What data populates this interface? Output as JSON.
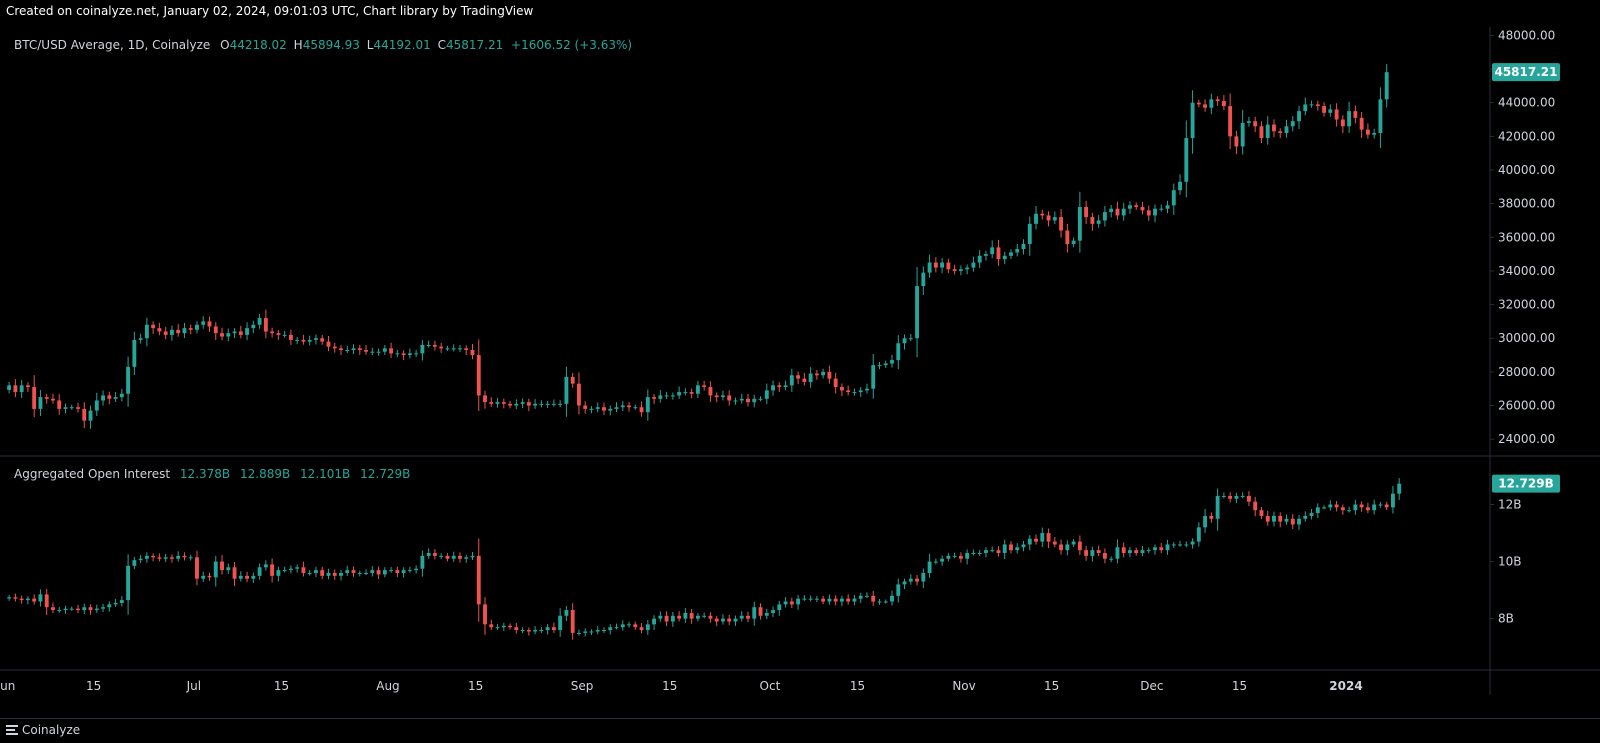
{
  "header": {
    "text": "Created on coinalyze.net, January 02, 2024, 09:01:03 UTC, Chart library by TradingView"
  },
  "footer": {
    "brand": "Coinalyze"
  },
  "colors": {
    "up": "#26a69a",
    "down": "#ef5350",
    "text": "#d1d4dc",
    "grid": "#2a2e39"
  },
  "legend_price": {
    "title": "BTC/USD Average, 1D, Coinalyze",
    "o_key": "O",
    "o": "44218.02",
    "h_key": "H",
    "h": "45894.93",
    "l_key": "L",
    "l": "44192.01",
    "c_key": "C",
    "c": "45817.21",
    "change": "+1606.52 (+3.63%)"
  },
  "legend_oi": {
    "title": "Aggregated Open Interest",
    "o": "12.378B",
    "h": "12.889B",
    "l": "12.101B",
    "c": "12.729B"
  },
  "chart_data": [
    {
      "type": "candlestick",
      "title": "BTC/USD Average, 1D, Coinalyze",
      "ylim": [
        23000,
        48500
      ],
      "y_ticks": [
        "48000.00",
        "46000.00",
        "44000.00",
        "42000.00",
        "40000.00",
        "38000.00",
        "36000.00",
        "34000.00",
        "32000.00",
        "30000.00",
        "28000.00",
        "26000.00",
        "24000.00"
      ],
      "last_value_label": "45817.21",
      "x_range": [
        "2023-06-01",
        "2024-01-24"
      ],
      "x_ticks": [
        {
          "date": "2023-06-01",
          "label": "Jun"
        },
        {
          "date": "2023-06-15",
          "label": "15"
        },
        {
          "date": "2023-07-01",
          "label": "Jul"
        },
        {
          "date": "2023-07-15",
          "label": "15"
        },
        {
          "date": "2023-08-01",
          "label": "Aug"
        },
        {
          "date": "2023-08-15",
          "label": "15"
        },
        {
          "date": "2023-09-01",
          "label": "Sep"
        },
        {
          "date": "2023-09-15",
          "label": "15"
        },
        {
          "date": "2023-10-01",
          "label": "Oct"
        },
        {
          "date": "2023-10-15",
          "label": "15"
        },
        {
          "date": "2023-11-01",
          "label": "Nov"
        },
        {
          "date": "2023-11-15",
          "label": "15"
        },
        {
          "date": "2023-12-01",
          "label": "Dec"
        },
        {
          "date": "2023-12-15",
          "label": "15"
        },
        {
          "date": "2024-01-01",
          "label": "2024"
        }
      ],
      "start_date": "2023-06-01",
      "close": [
        27200,
        26800,
        27200,
        27100,
        25800,
        26500,
        26400,
        26300,
        25800,
        25900,
        25900,
        25800,
        25100,
        25700,
        26300,
        26600,
        26400,
        26500,
        26700,
        28300,
        29900,
        30000,
        30800,
        30600,
        30400,
        30200,
        30500,
        30300,
        30600,
        30500,
        30800,
        31000,
        30700,
        30300,
        30100,
        30300,
        30400,
        30200,
        30600,
        30800,
        31200,
        30400,
        30300,
        30200,
        30200,
        29900,
        29900,
        29800,
        29900,
        30000,
        29800,
        29500,
        29400,
        29300,
        29300,
        29400,
        29300,
        29200,
        29200,
        29200,
        29400,
        29100,
        29100,
        29000,
        29100,
        29100,
        29600,
        29600,
        29500,
        29400,
        29400,
        29400,
        29400,
        29300,
        29000,
        26600,
        26200,
        26100,
        26200,
        26100,
        26000,
        26100,
        26200,
        26000,
        26100,
        26100,
        26100,
        26100,
        26100,
        27700,
        27300,
        26000,
        25800,
        25800,
        25900,
        25700,
        25800,
        25900,
        26000,
        25900,
        25900,
        25600,
        26500,
        26400,
        26600,
        26600,
        26600,
        26800,
        26800,
        26700,
        27200,
        27100,
        26600,
        26500,
        26600,
        26300,
        26300,
        26400,
        26200,
        26400,
        26400,
        26900,
        27200,
        27100,
        27200,
        27800,
        27600,
        27400,
        27900,
        27800,
        28000,
        27600,
        27100,
        26900,
        26800,
        26800,
        26900,
        27000,
        28400,
        28400,
        28500,
        28700,
        29700,
        30000,
        30000,
        33100,
        33900,
        34500,
        34200,
        34500,
        34100,
        34000,
        34100,
        34200,
        34500,
        34900,
        35000,
        35400,
        34700,
        34900,
        35100,
        35300,
        35600,
        36800,
        37400,
        37300,
        37000,
        37200,
        36400,
        35600,
        35800,
        37800,
        37200,
        36800,
        37000,
        37500,
        37700,
        37300,
        37700,
        37900,
        37800,
        37600,
        37300,
        37700,
        37700,
        37900,
        38800,
        39300,
        41900,
        44000,
        43900,
        43700,
        44200,
        44100,
        43800,
        42000,
        41400,
        42800,
        42900,
        42600,
        41900,
        42700,
        42300,
        42200,
        42600,
        42900,
        43500,
        43900,
        43900,
        43800,
        43400,
        43600,
        43000,
        42600,
        43500,
        43100,
        42400,
        42100,
        42200,
        44200,
        45817
      ]
    },
    {
      "type": "candlestick",
      "title": "Aggregated Open Interest",
      "ylim": [
        6.2,
        13.7
      ],
      "y_ticks": [
        "12B",
        "10B",
        "8B"
      ],
      "last_value_label": "12.729B",
      "close": [
        8.75,
        8.7,
        8.65,
        8.7,
        8.6,
        8.85,
        8.4,
        8.3,
        8.3,
        8.35,
        8.35,
        8.3,
        8.4,
        8.3,
        8.35,
        8.4,
        8.5,
        8.55,
        8.65,
        9.85,
        10.05,
        10.1,
        10.2,
        10.15,
        10.1,
        10.15,
        10.1,
        10.2,
        10.15,
        10.15,
        9.4,
        9.5,
        9.45,
        10.0,
        9.7,
        9.8,
        9.4,
        9.5,
        9.4,
        9.5,
        9.8,
        9.9,
        9.5,
        9.7,
        9.7,
        9.75,
        9.8,
        9.6,
        9.6,
        9.7,
        9.5,
        9.6,
        9.5,
        9.6,
        9.7,
        9.6,
        9.6,
        9.6,
        9.7,
        9.55,
        9.7,
        9.7,
        9.6,
        9.7,
        9.7,
        9.75,
        10.2,
        10.3,
        10.2,
        10.2,
        10.1,
        10.2,
        10.1,
        10.15,
        10.2,
        8.5,
        7.8,
        7.7,
        7.7,
        7.75,
        7.7,
        7.6,
        7.6,
        7.55,
        7.6,
        7.6,
        7.7,
        7.6,
        8.1,
        8.3,
        7.5,
        7.5,
        7.55,
        7.55,
        7.6,
        7.6,
        7.7,
        7.7,
        7.8,
        7.8,
        7.7,
        7.6,
        7.8,
        8.0,
        8.1,
        7.9,
        8.1,
        8.0,
        8.2,
        8.0,
        8.1,
        8.1,
        8.0,
        7.9,
        8.0,
        7.9,
        8.0,
        8.1,
        8.0,
        8.4,
        8.1,
        8.2,
        8.3,
        8.5,
        8.6,
        8.5,
        8.7,
        8.7,
        8.7,
        8.7,
        8.6,
        8.7,
        8.6,
        8.7,
        8.6,
        8.7,
        8.8,
        8.8,
        8.6,
        8.6,
        8.6,
        8.8,
        9.2,
        9.3,
        9.4,
        9.3,
        9.6,
        10.0,
        10.0,
        10.1,
        10.2,
        10.2,
        10.1,
        10.3,
        10.3,
        10.3,
        10.4,
        10.4,
        10.3,
        10.6,
        10.4,
        10.5,
        10.6,
        10.8,
        10.7,
        11.0,
        10.7,
        10.6,
        10.4,
        10.6,
        10.7,
        10.4,
        10.2,
        10.4,
        10.3,
        10.1,
        10.1,
        10.5,
        10.3,
        10.4,
        10.3,
        10.4,
        10.4,
        10.5,
        10.4,
        10.6,
        10.6,
        10.6,
        10.6,
        10.7,
        11.2,
        11.6,
        11.5,
        12.3,
        12.3,
        12.2,
        12.3,
        12.3,
        12.1,
        11.8,
        11.6,
        11.4,
        11.6,
        11.4,
        11.5,
        11.3,
        11.5,
        11.6,
        11.7,
        11.9,
        11.9,
        12.0,
        11.9,
        11.8,
        11.8,
        12.0,
        11.9,
        11.8,
        12.0,
        12.0,
        11.9,
        12.38,
        12.73
      ]
    }
  ]
}
